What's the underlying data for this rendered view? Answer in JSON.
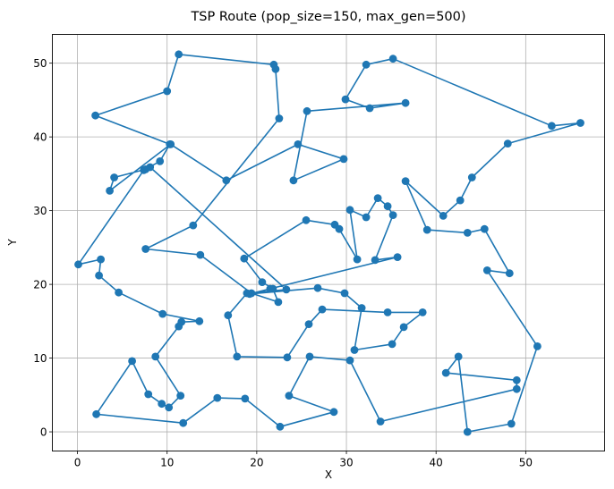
{
  "chart_data": {
    "type": "line",
    "title": "TSP Route (pop_size=150, max_gen=500)",
    "xlabel": "X",
    "ylabel": "Y",
    "xlim": [
      -2.8,
      58.8
    ],
    "ylim": [
      -2.6,
      53.9
    ],
    "xticks": [
      0,
      10,
      20,
      30,
      40,
      50
    ],
    "yticks": [
      0,
      10,
      20,
      30,
      40,
      50
    ],
    "grid": true,
    "color": "#1f77b4",
    "closed": true,
    "series": [
      {
        "points": [
          [
            56.1,
            41.9
          ],
          [
            48,
            39.1
          ],
          [
            44,
            34.5
          ],
          [
            42.7,
            31.4
          ],
          [
            40.8,
            29.3
          ],
          [
            36.6,
            34
          ],
          [
            39,
            27.4
          ],
          [
            43.5,
            27
          ],
          [
            45.4,
            27.5
          ],
          [
            48.2,
            21.5
          ],
          [
            45.7,
            21.9
          ],
          [
            51.3,
            11.6
          ],
          [
            48.4,
            1.1
          ],
          [
            43.5,
            0
          ],
          [
            42.5,
            10.2
          ],
          [
            41.1,
            8
          ],
          [
            49,
            7
          ],
          [
            49,
            5.8
          ],
          [
            33.8,
            1.4
          ],
          [
            30.4,
            9.7
          ],
          [
            25.9,
            10.2
          ],
          [
            23.6,
            4.9
          ],
          [
            28.6,
            2.7
          ],
          [
            22.6,
            0.7
          ],
          [
            18.7,
            4.5
          ],
          [
            15.6,
            4.6
          ],
          [
            11.8,
            1.2
          ],
          [
            2.1,
            2.4
          ],
          [
            6.1,
            9.6
          ],
          [
            7.9,
            5.1
          ],
          [
            9.4,
            3.8
          ],
          [
            10.2,
            3.3
          ],
          [
            11.5,
            4.9
          ],
          [
            8.7,
            10.2
          ],
          [
            11.3,
            14.3
          ],
          [
            11.6,
            14.9
          ],
          [
            13.6,
            15
          ],
          [
            9.5,
            16
          ],
          [
            4.6,
            18.9
          ],
          [
            2.4,
            21.2
          ],
          [
            2.6,
            23.4
          ],
          [
            0.1,
            22.7
          ],
          [
            7.4,
            35.5
          ],
          [
            9.2,
            36.7
          ],
          [
            10.3,
            39
          ],
          [
            2,
            42.9
          ],
          [
            10,
            46.2
          ],
          [
            11.3,
            51.2
          ],
          [
            21.9,
            49.8
          ],
          [
            22.1,
            49.2
          ],
          [
            22.5,
            42.5
          ],
          [
            12.9,
            28
          ],
          [
            7.6,
            24.8
          ],
          [
            13.7,
            24
          ],
          [
            19.4,
            18.8
          ],
          [
            22.4,
            17.6
          ],
          [
            21.8,
            19.4
          ],
          [
            20.6,
            20.3
          ],
          [
            18.6,
            23.5
          ],
          [
            25.5,
            28.7
          ],
          [
            28.7,
            28.1
          ],
          [
            29.2,
            27.5
          ],
          [
            31.2,
            23.4
          ],
          [
            30.4,
            30.1
          ],
          [
            32.2,
            29.1
          ],
          [
            33.5,
            31.7
          ],
          [
            34.6,
            30.6
          ],
          [
            35.2,
            29.4
          ],
          [
            33.2,
            23.3
          ],
          [
            35.7,
            23.7
          ],
          [
            21.5,
            19.4
          ],
          [
            19.2,
            18.7
          ],
          [
            26.8,
            19.5
          ],
          [
            29.8,
            18.8
          ],
          [
            31.7,
            16.8
          ],
          [
            30.9,
            11.1
          ],
          [
            35.1,
            11.9
          ],
          [
            36.4,
            14.2
          ],
          [
            38.5,
            16.2
          ],
          [
            34.6,
            16.2
          ],
          [
            27.3,
            16.6
          ],
          [
            25.8,
            14.6
          ],
          [
            23.4,
            10.1
          ],
          [
            17.8,
            10.2
          ],
          [
            16.8,
            15.8
          ],
          [
            18.9,
            18.8
          ],
          [
            23.3,
            19.3
          ],
          [
            8.1,
            35.9
          ],
          [
            7.6,
            35.6
          ],
          [
            4.1,
            34.5
          ],
          [
            3.6,
            32.7
          ],
          [
            10.4,
            39
          ],
          [
            16.6,
            34.1
          ],
          [
            24.6,
            39
          ],
          [
            29.7,
            37
          ],
          [
            24.1,
            34.1
          ],
          [
            25.6,
            43.5
          ],
          [
            36.6,
            44.6
          ],
          [
            32.6,
            43.9
          ],
          [
            29.9,
            45.1
          ],
          [
            32.2,
            49.8
          ],
          [
            35.2,
            50.6
          ],
          [
            52.9,
            41.5
          ]
        ]
      }
    ]
  }
}
